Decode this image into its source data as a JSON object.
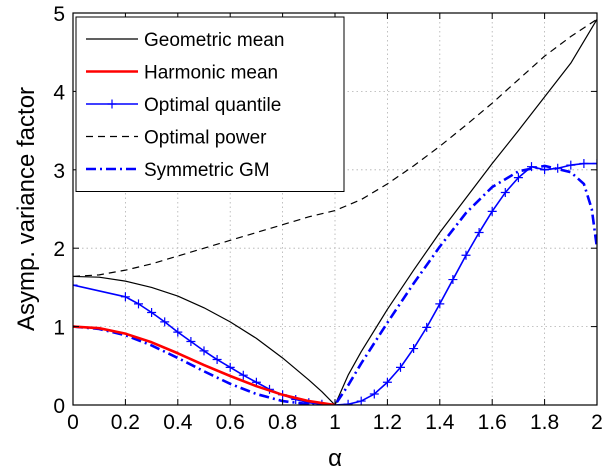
{
  "chart_data": {
    "type": "line",
    "title": "",
    "xlabel": "α",
    "ylabel": "Asymp. variance factor",
    "xlim": [
      0,
      2
    ],
    "ylim": [
      0,
      5
    ],
    "grid": true,
    "legend_position": "top-left",
    "x_ticks": [
      "0",
      "0.2",
      "0.4",
      "0.6",
      "0.8",
      "1",
      "1.2",
      "1.4",
      "1.6",
      "1.8",
      "2"
    ],
    "y_ticks": [
      "0",
      "1",
      "2",
      "3",
      "4",
      "5"
    ],
    "series": [
      {
        "name": "Geometric mean",
        "color": "#000000",
        "style": "solid",
        "x": [
          0,
          0.1,
          0.2,
          0.3,
          0.4,
          0.5,
          0.6,
          0.7,
          0.8,
          0.9,
          0.95,
          1.0,
          1.05,
          1.1,
          1.2,
          1.3,
          1.4,
          1.5,
          1.6,
          1.7,
          1.8,
          1.9,
          2.0
        ],
        "y": [
          1.64,
          1.63,
          1.58,
          1.5,
          1.39,
          1.24,
          1.06,
          0.85,
          0.6,
          0.32,
          0.17,
          0.0,
          0.38,
          0.68,
          1.22,
          1.72,
          2.2,
          2.64,
          3.08,
          3.5,
          3.93,
          4.36,
          4.92
        ]
      },
      {
        "name": "Harmonic mean",
        "color": "#ff0000",
        "style": "solid",
        "x": [
          0,
          0.1,
          0.2,
          0.3,
          0.4,
          0.5,
          0.6,
          0.7,
          0.8,
          0.9,
          1.0
        ],
        "y": [
          1.0,
          0.98,
          0.91,
          0.8,
          0.66,
          0.51,
          0.37,
          0.24,
          0.13,
          0.05,
          0.0
        ]
      },
      {
        "name": "Optimal quantile",
        "color": "#0000ff",
        "style": "solid",
        "markers": true,
        "x": [
          0,
          0.2,
          0.25,
          0.3,
          0.35,
          0.4,
          0.45,
          0.5,
          0.55,
          0.6,
          0.65,
          0.7,
          0.75,
          0.8,
          0.85,
          0.9,
          0.95,
          1.0,
          1.05,
          1.1,
          1.15,
          1.2,
          1.25,
          1.3,
          1.35,
          1.4,
          1.45,
          1.5,
          1.55,
          1.6,
          1.65,
          1.7,
          1.75,
          1.8,
          1.85,
          1.9,
          1.95,
          2.0
        ],
        "y": [
          1.53,
          1.38,
          1.29,
          1.18,
          1.06,
          0.93,
          0.81,
          0.69,
          0.58,
          0.48,
          0.38,
          0.29,
          0.2,
          0.13,
          0.07,
          0.03,
          0.01,
          0.0,
          0.01,
          0.05,
          0.14,
          0.29,
          0.48,
          0.72,
          0.99,
          1.29,
          1.6,
          1.91,
          2.2,
          2.47,
          2.71,
          2.9,
          3.04,
          3.0,
          3.02,
          3.06,
          3.08,
          3.08
        ]
      },
      {
        "name": "Optimal power",
        "color": "#000000",
        "style": "dashed",
        "x": [
          0,
          0.1,
          0.2,
          0.3,
          0.4,
          0.5,
          0.6,
          0.7,
          0.8,
          0.9,
          1.0,
          1.1,
          1.2,
          1.3,
          1.4,
          1.5,
          1.6,
          1.7,
          1.8,
          1.9,
          2.0
        ],
        "y": [
          1.64,
          1.66,
          1.72,
          1.8,
          1.9,
          2.0,
          2.1,
          2.2,
          2.3,
          2.4,
          2.48,
          2.62,
          2.82,
          3.05,
          3.3,
          3.57,
          3.85,
          4.15,
          4.45,
          4.7,
          4.92
        ]
      },
      {
        "name": "Symmetric GM",
        "color": "#0000ff",
        "style": "dashdot",
        "x": [
          0,
          0.1,
          0.2,
          0.3,
          0.4,
          0.5,
          0.6,
          0.7,
          0.8,
          0.9,
          1.0,
          1.05,
          1.1,
          1.2,
          1.3,
          1.4,
          1.5,
          1.6,
          1.7,
          1.8,
          1.9,
          1.95,
          1.98,
          2.0
        ],
        "y": [
          1.0,
          0.97,
          0.89,
          0.76,
          0.6,
          0.43,
          0.27,
          0.14,
          0.05,
          0.01,
          0.0,
          0.25,
          0.53,
          1.05,
          1.55,
          2.02,
          2.45,
          2.78,
          2.98,
          3.05,
          2.97,
          2.82,
          2.5,
          2.0
        ]
      }
    ]
  }
}
